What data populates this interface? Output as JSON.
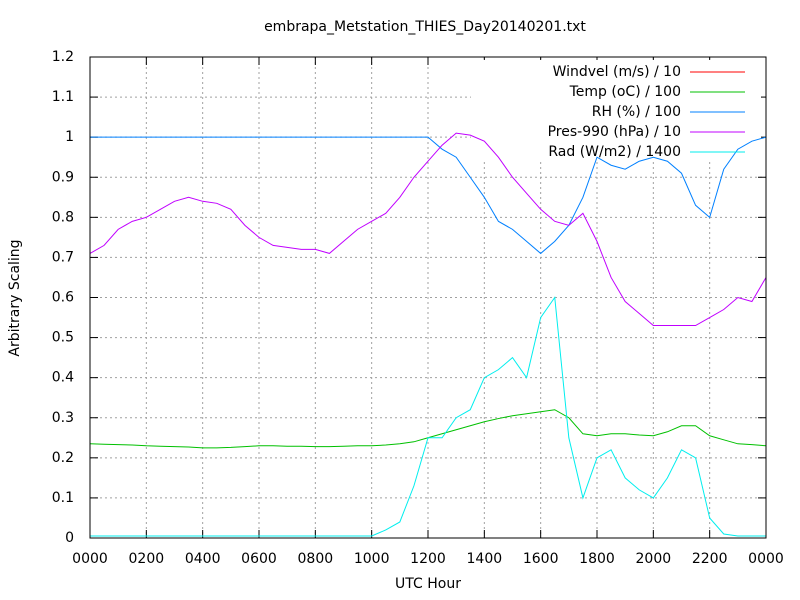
{
  "chart_data": {
    "type": "line",
    "title": "embrapa_Metstation_THIES_Day20140201.txt",
    "x_label": "UTC Hour",
    "y_label": "Arbitrary Scaling",
    "xlim": [
      0,
      24
    ],
    "xticks": [
      {
        "value": 0,
        "label": "0000"
      },
      {
        "value": 2,
        "label": "0200"
      },
      {
        "value": 4,
        "label": "0400"
      },
      {
        "value": 6,
        "label": "0600"
      },
      {
        "value": 8,
        "label": "0800"
      },
      {
        "value": 10,
        "label": "1000"
      },
      {
        "value": 12,
        "label": "1200"
      },
      {
        "value": 14,
        "label": "1400"
      },
      {
        "value": 16,
        "label": "1600"
      },
      {
        "value": 18,
        "label": "1800"
      },
      {
        "value": 20,
        "label": "2000"
      },
      {
        "value": 22,
        "label": "2200"
      },
      {
        "value": 24,
        "label": "0000"
      }
    ],
    "ylim": [
      0,
      1.2
    ],
    "yticks": [
      0,
      0.1,
      0.2,
      0.3,
      0.4,
      0.5,
      0.6,
      0.7,
      0.8,
      0.9,
      1,
      1.1,
      1.2
    ],
    "grid": true,
    "legend": "top-right",
    "x": [
      0,
      0.5,
      1,
      1.5,
      2,
      2.5,
      3,
      3.5,
      4,
      4.5,
      5,
      5.5,
      6,
      6.5,
      7,
      7.5,
      8,
      8.5,
      9,
      9.5,
      10,
      10.5,
      11,
      11.5,
      12,
      12.5,
      13,
      13.5,
      14,
      14.5,
      15,
      15.5,
      16,
      16.5,
      17,
      17.5,
      18,
      18.5,
      19,
      19.5,
      20,
      20.5,
      21,
      21.5,
      22,
      22.5,
      23,
      23.5,
      24
    ],
    "series": [
      {
        "name": "Windvel (m/s) / 10",
        "color": "#ff0000",
        "values": [
          0,
          0,
          0,
          0,
          0,
          0,
          0,
          0,
          0,
          0,
          0,
          0,
          0,
          0,
          0,
          0,
          0,
          0,
          0,
          0,
          0,
          0,
          0,
          0,
          0,
          0,
          0,
          0,
          0,
          0,
          0,
          0,
          0,
          0,
          0,
          0,
          0,
          0,
          0,
          0,
          0,
          0,
          0,
          0,
          0,
          0,
          0,
          0,
          0
        ]
      },
      {
        "name": "Temp (oC) / 100",
        "color": "#00c000",
        "values": [
          0.235,
          0.234,
          0.233,
          0.232,
          0.23,
          0.229,
          0.228,
          0.227,
          0.225,
          0.225,
          0.226,
          0.228,
          0.23,
          0.23,
          0.229,
          0.229,
          0.228,
          0.228,
          0.229,
          0.23,
          0.23,
          0.232,
          0.235,
          0.24,
          0.25,
          0.26,
          0.27,
          0.28,
          0.29,
          0.298,
          0.305,
          0.31,
          0.315,
          0.32,
          0.3,
          0.26,
          0.255,
          0.26,
          0.26,
          0.257,
          0.255,
          0.265,
          0.28,
          0.28,
          0.255,
          0.245,
          0.235,
          0.233,
          0.23
        ]
      },
      {
        "name": "RH (%) / 100",
        "color": "#0080ff",
        "values": [
          1,
          1,
          1,
          1,
          1,
          1,
          1,
          1,
          1,
          1,
          1,
          1,
          1,
          1,
          1,
          1,
          1,
          1,
          1,
          1,
          1,
          1,
          1,
          1,
          1,
          0.97,
          0.95,
          0.9,
          0.85,
          0.79,
          0.77,
          0.74,
          0.71,
          0.74,
          0.78,
          0.85,
          0.95,
          0.93,
          0.92,
          0.94,
          0.95,
          0.94,
          0.91,
          0.83,
          0.8,
          0.92,
          0.97,
          0.99,
          1
        ]
      },
      {
        "name": "Pres-990 (hPa) / 10",
        "color": "#c000ff",
        "values": [
          0.71,
          0.73,
          0.77,
          0.79,
          0.8,
          0.82,
          0.84,
          0.85,
          0.84,
          0.835,
          0.82,
          0.78,
          0.75,
          0.73,
          0.725,
          0.72,
          0.72,
          0.71,
          0.74,
          0.77,
          0.79,
          0.81,
          0.85,
          0.9,
          0.94,
          0.98,
          1.01,
          1.005,
          0.99,
          0.95,
          0.9,
          0.86,
          0.82,
          0.79,
          0.78,
          0.81,
          0.74,
          0.65,
          0.59,
          0.56,
          0.53,
          0.53,
          0.53,
          0.53,
          0.55,
          0.57,
          0.6,
          0.59,
          0.65
        ]
      },
      {
        "name": "Rad (W/m2) / 1400",
        "color": "#00eeee",
        "values": [
          0.005,
          0.005,
          0.005,
          0.005,
          0.005,
          0.005,
          0.005,
          0.005,
          0.005,
          0.005,
          0.005,
          0.005,
          0.005,
          0.005,
          0.005,
          0.005,
          0.005,
          0.005,
          0.005,
          0.005,
          0.005,
          0.02,
          0.04,
          0.13,
          0.25,
          0.25,
          0.3,
          0.32,
          0.4,
          0.42,
          0.45,
          0.4,
          0.55,
          0.6,
          0.25,
          0.1,
          0.2,
          0.22,
          0.15,
          0.12,
          0.1,
          0.15,
          0.22,
          0.2,
          0.05,
          0.01,
          0.005,
          0.005,
          0.005
        ]
      }
    ]
  }
}
